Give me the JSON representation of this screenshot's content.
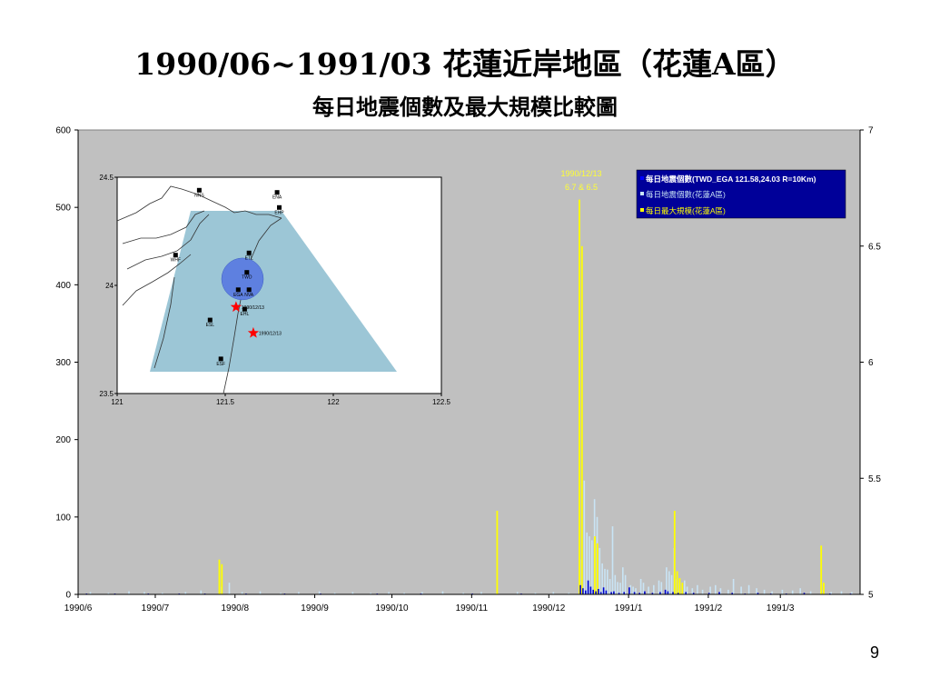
{
  "slide": {
    "title": "1990/06~1991/03 花蓮近岸地區（花蓮A區）",
    "subtitle": "每日地震個數及最大規模比較圖",
    "page_number": "9"
  },
  "chart_data": {
    "type": "bar",
    "x_ticks": [
      "1990/6",
      "1990/7",
      "1990/8",
      "1990/9",
      "1990/10",
      "1990/11",
      "1990/12",
      "1991/1",
      "1991/2",
      "1991/3"
    ],
    "y_left": {
      "ticks": [
        0,
        100,
        200,
        300,
        400,
        500,
        600
      ],
      "range": [
        0,
        600
      ]
    },
    "y_right": {
      "ticks": [
        5,
        5.5,
        6,
        6.5,
        7
      ],
      "range": [
        5,
        7
      ]
    },
    "grid": false,
    "legend_position": "top-right",
    "background": "#c0c0c0",
    "series": [
      {
        "name": "每日地震個數(TWD_EGA 121.58,24.03 R=10Km)",
        "color": "#0000cc",
        "axis": "left",
        "points": [
          [
            "1990-06-04",
            1
          ],
          [
            "1990-06-15",
            1
          ],
          [
            "1990-06-28",
            1
          ],
          [
            "1990-07-10",
            1
          ],
          [
            "1990-07-20",
            1
          ],
          [
            "1990-08-05",
            1
          ],
          [
            "1990-08-20",
            1
          ],
          [
            "1990-09-03",
            1
          ],
          [
            "1990-09-25",
            1
          ],
          [
            "1990-10-12",
            1
          ],
          [
            "1990-11-01",
            1
          ],
          [
            "1990-11-20",
            1
          ],
          [
            "1990-12-13",
            12
          ],
          [
            "1990-12-14",
            8
          ],
          [
            "1990-12-15",
            5
          ],
          [
            "1990-12-16",
            18
          ],
          [
            "1990-12-17",
            10
          ],
          [
            "1990-12-18",
            6
          ],
          [
            "1990-12-19",
            4
          ],
          [
            "1990-12-20",
            7
          ],
          [
            "1990-12-21",
            3
          ],
          [
            "1990-12-22",
            9
          ],
          [
            "1990-12-23",
            5
          ],
          [
            "1990-12-25",
            3
          ],
          [
            "1990-12-26",
            4
          ],
          [
            "1990-12-28",
            2
          ],
          [
            "1990-12-30",
            3
          ],
          [
            "1991-01-01",
            9
          ],
          [
            "1991-01-03",
            3
          ],
          [
            "1991-01-05",
            2
          ],
          [
            "1991-01-07",
            4
          ],
          [
            "1991-01-10",
            2
          ],
          [
            "1991-01-13",
            3
          ],
          [
            "1991-01-15",
            6
          ],
          [
            "1991-01-16",
            4
          ],
          [
            "1991-01-18",
            3
          ],
          [
            "1991-01-20",
            2
          ],
          [
            "1991-01-23",
            3
          ],
          [
            "1991-01-26",
            2
          ],
          [
            "1991-02-01",
            2
          ],
          [
            "1991-02-05",
            3
          ],
          [
            "1991-02-10",
            2
          ],
          [
            "1991-02-15",
            1
          ],
          [
            "1991-02-20",
            2
          ],
          [
            "1991-02-25",
            1
          ],
          [
            "1991-03-03",
            1
          ],
          [
            "1991-03-10",
            2
          ],
          [
            "1991-03-20",
            1
          ],
          [
            "1991-03-28",
            1
          ]
        ]
      },
      {
        "name": "每日地震個數(花蓮A區)",
        "color": "#c9e4f5",
        "axis": "left",
        "points": [
          [
            "1990-06-05",
            3
          ],
          [
            "1990-06-12",
            2
          ],
          [
            "1990-06-20",
            4
          ],
          [
            "1990-06-26",
            3
          ],
          [
            "1990-07-03",
            2
          ],
          [
            "1990-07-12",
            3
          ],
          [
            "1990-07-18",
            5
          ],
          [
            "1990-07-26",
            10
          ],
          [
            "1990-07-29",
            15
          ],
          [
            "1990-08-03",
            3
          ],
          [
            "1990-08-10",
            4
          ],
          [
            "1990-08-18",
            2
          ],
          [
            "1990-08-25",
            3
          ],
          [
            "1990-09-02",
            4
          ],
          [
            "1990-09-08",
            2
          ],
          [
            "1990-09-15",
            3
          ],
          [
            "1990-09-22",
            2
          ],
          [
            "1990-09-29",
            3
          ],
          [
            "1990-10-05",
            2
          ],
          [
            "1990-10-12",
            3
          ],
          [
            "1990-10-20",
            4
          ],
          [
            "1990-10-28",
            2
          ],
          [
            "1990-11-04",
            3
          ],
          [
            "1990-11-10",
            2
          ],
          [
            "1990-11-18",
            3
          ],
          [
            "1990-11-25",
            2
          ],
          [
            "1990-12-02",
            3
          ],
          [
            "1990-12-08",
            2
          ],
          [
            "1990-12-13",
            45
          ],
          [
            "1990-12-14",
            147
          ],
          [
            "1990-12-15",
            80
          ],
          [
            "1990-12-16",
            75
          ],
          [
            "1990-12-17",
            70
          ],
          [
            "1990-12-18",
            123
          ],
          [
            "1990-12-19",
            100
          ],
          [
            "1990-12-20",
            60
          ],
          [
            "1990-12-21",
            40
          ],
          [
            "1990-12-22",
            33
          ],
          [
            "1990-12-23",
            32
          ],
          [
            "1990-12-24",
            20
          ],
          [
            "1990-12-25",
            88
          ],
          [
            "1990-12-26",
            25
          ],
          [
            "1990-12-27",
            16
          ],
          [
            "1990-12-28",
            15
          ],
          [
            "1990-12-29",
            35
          ],
          [
            "1990-12-30",
            25
          ],
          [
            "1991-01-01",
            12
          ],
          [
            "1991-01-02",
            10
          ],
          [
            "1991-01-03",
            8
          ],
          [
            "1991-01-05",
            20
          ],
          [
            "1991-01-06",
            15
          ],
          [
            "1991-01-08",
            10
          ],
          [
            "1991-01-10",
            12
          ],
          [
            "1991-01-12",
            18
          ],
          [
            "1991-01-13",
            16
          ],
          [
            "1991-01-15",
            35
          ],
          [
            "1991-01-16",
            30
          ],
          [
            "1991-01-17",
            25
          ],
          [
            "1991-01-18",
            60
          ],
          [
            "1991-01-19",
            20
          ],
          [
            "1991-01-20",
            15
          ],
          [
            "1991-01-22",
            18
          ],
          [
            "1991-01-23",
            10
          ],
          [
            "1991-01-25",
            8
          ],
          [
            "1991-01-27",
            12
          ],
          [
            "1991-01-29",
            6
          ],
          [
            "1991-02-01",
            10
          ],
          [
            "1991-02-03",
            12
          ],
          [
            "1991-02-05",
            8
          ],
          [
            "1991-02-08",
            6
          ],
          [
            "1991-02-10",
            20
          ],
          [
            "1991-02-13",
            10
          ],
          [
            "1991-02-16",
            12
          ],
          [
            "1991-02-19",
            8
          ],
          [
            "1991-02-22",
            6
          ],
          [
            "1991-02-25",
            4
          ],
          [
            "1991-03-01",
            6
          ],
          [
            "1991-03-05",
            5
          ],
          [
            "1991-03-08",
            8
          ],
          [
            "1991-03-12",
            4
          ],
          [
            "1991-03-16",
            5
          ],
          [
            "1991-03-20",
            3
          ],
          [
            "1991-03-24",
            4
          ],
          [
            "1991-03-28",
            3
          ]
        ]
      },
      {
        "name": "每日最大規模(花蓮A區)",
        "color": "#ffff00",
        "axis": "right",
        "points": [
          [
            "1990-07-26",
            5.15
          ],
          [
            "1990-07-27",
            5.13
          ],
          [
            "1990-11-11",
            5.36
          ],
          [
            "1990-12-13",
            6.7
          ],
          [
            "1990-12-14",
            6.5
          ],
          [
            "1990-12-19",
            5.25
          ],
          [
            "1990-12-20",
            5.22
          ],
          [
            "1991-01-19",
            5.36
          ],
          [
            "1991-01-20",
            5.1
          ],
          [
            "1991-01-21",
            5.07
          ],
          [
            "1991-01-22",
            5.05
          ],
          [
            "1991-03-17",
            5.21
          ],
          [
            "1991-03-18",
            5.05
          ]
        ]
      }
    ],
    "annotation": {
      "lines": [
        "1990/12/13",
        "6.7 & 6.5"
      ],
      "date": "1990-12-13"
    },
    "inset_map": {
      "x_ticks": [
        "121",
        "121.5",
        "122",
        "122.5"
      ],
      "y_ticks": [
        "24.5",
        "24",
        "23.5"
      ],
      "x_range": [
        121,
        122.5
      ],
      "y_range": [
        23.5,
        24.5
      ],
      "stations": [
        {
          "name": "NNS",
          "lon": 121.38,
          "lat": 24.44
        },
        {
          "name": "ENA",
          "lon": 121.74,
          "lat": 24.43
        },
        {
          "name": "EHP",
          "lon": 121.75,
          "lat": 24.36
        },
        {
          "name": "WHF",
          "lon": 121.27,
          "lat": 24.14
        },
        {
          "name": "ETL",
          "lon": 121.61,
          "lat": 24.15
        },
        {
          "name": "TWD",
          "lon": 121.6,
          "lat": 24.06
        },
        {
          "name": "EGA",
          "lon": 121.56,
          "lat": 23.98
        },
        {
          "name": "NVA",
          "lon": 121.61,
          "lat": 23.98
        },
        {
          "name": "EHL",
          "lon": 121.59,
          "lat": 23.89
        },
        {
          "name": "ESL",
          "lon": 121.43,
          "lat": 23.84
        },
        {
          "name": "ESF",
          "lon": 121.48,
          "lat": 23.66
        }
      ],
      "events": [
        {
          "label": "1990/12/13",
          "lon": 121.55,
          "lat": 23.9
        },
        {
          "label": "1990/12/13",
          "lon": 121.63,
          "lat": 23.78
        }
      ],
      "circle": {
        "lon": 121.58,
        "lat": 24.03,
        "radius_label": "R=10Km"
      },
      "colors": {
        "region": "#9cc6d6",
        "circle": "#5e80e0",
        "star": "#ff0000"
      }
    }
  }
}
